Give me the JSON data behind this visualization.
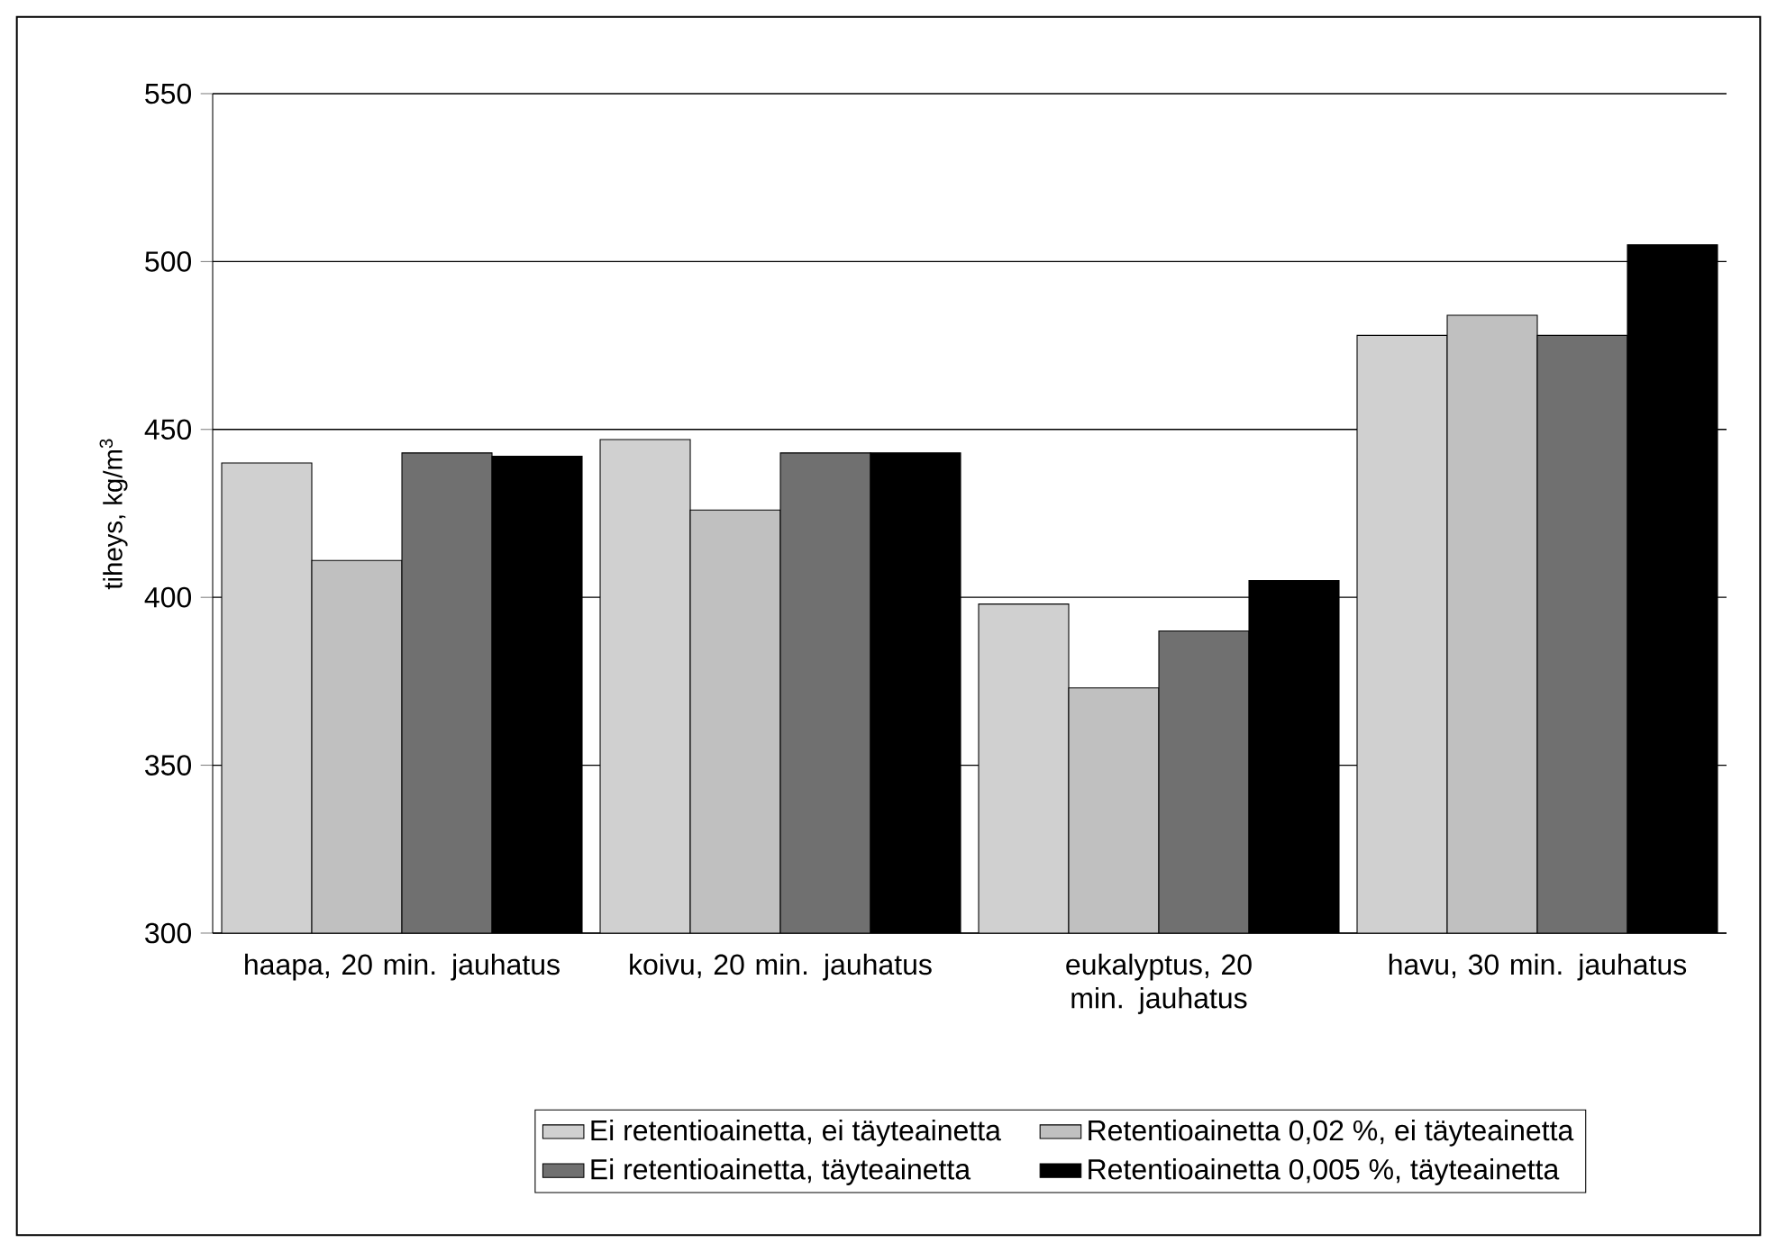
{
  "chart_data": {
    "type": "bar",
    "ylabel": "tiheys, kg/m$^{3}$",
    "categories": [
      "haapa, 20 min. jauhatus",
      "koivu, 20 min. jauhatus",
      "eukalyptus, 20 min. jauhatus",
      "havu, 30 min. jauhatus"
    ],
    "series": [
      {
        "name": "Ei retentioainetta, ei täyteainetta",
        "color": "#d0d0d0",
        "values": [
          440,
          447,
          398,
          478
        ]
      },
      {
        "name": "Retentioainetta 0,02 %, ei täyteainetta",
        "color": "#c0c0c0",
        "values": [
          411,
          426,
          373,
          484
        ]
      },
      {
        "name": "Ei retentioainetta, täyteainetta",
        "color": "#707070",
        "values": [
          443,
          443,
          390,
          478
        ]
      },
      {
        "name": "Retentioainetta 0,005 %, täyteainetta",
        "color": "#000000",
        "values": [
          442,
          443,
          405,
          505
        ]
      }
    ],
    "ylim": [
      300,
      550
    ],
    "yticks": [
      300,
      350,
      400,
      450,
      500,
      550
    ],
    "grid": "y",
    "legend": "bottom"
  }
}
